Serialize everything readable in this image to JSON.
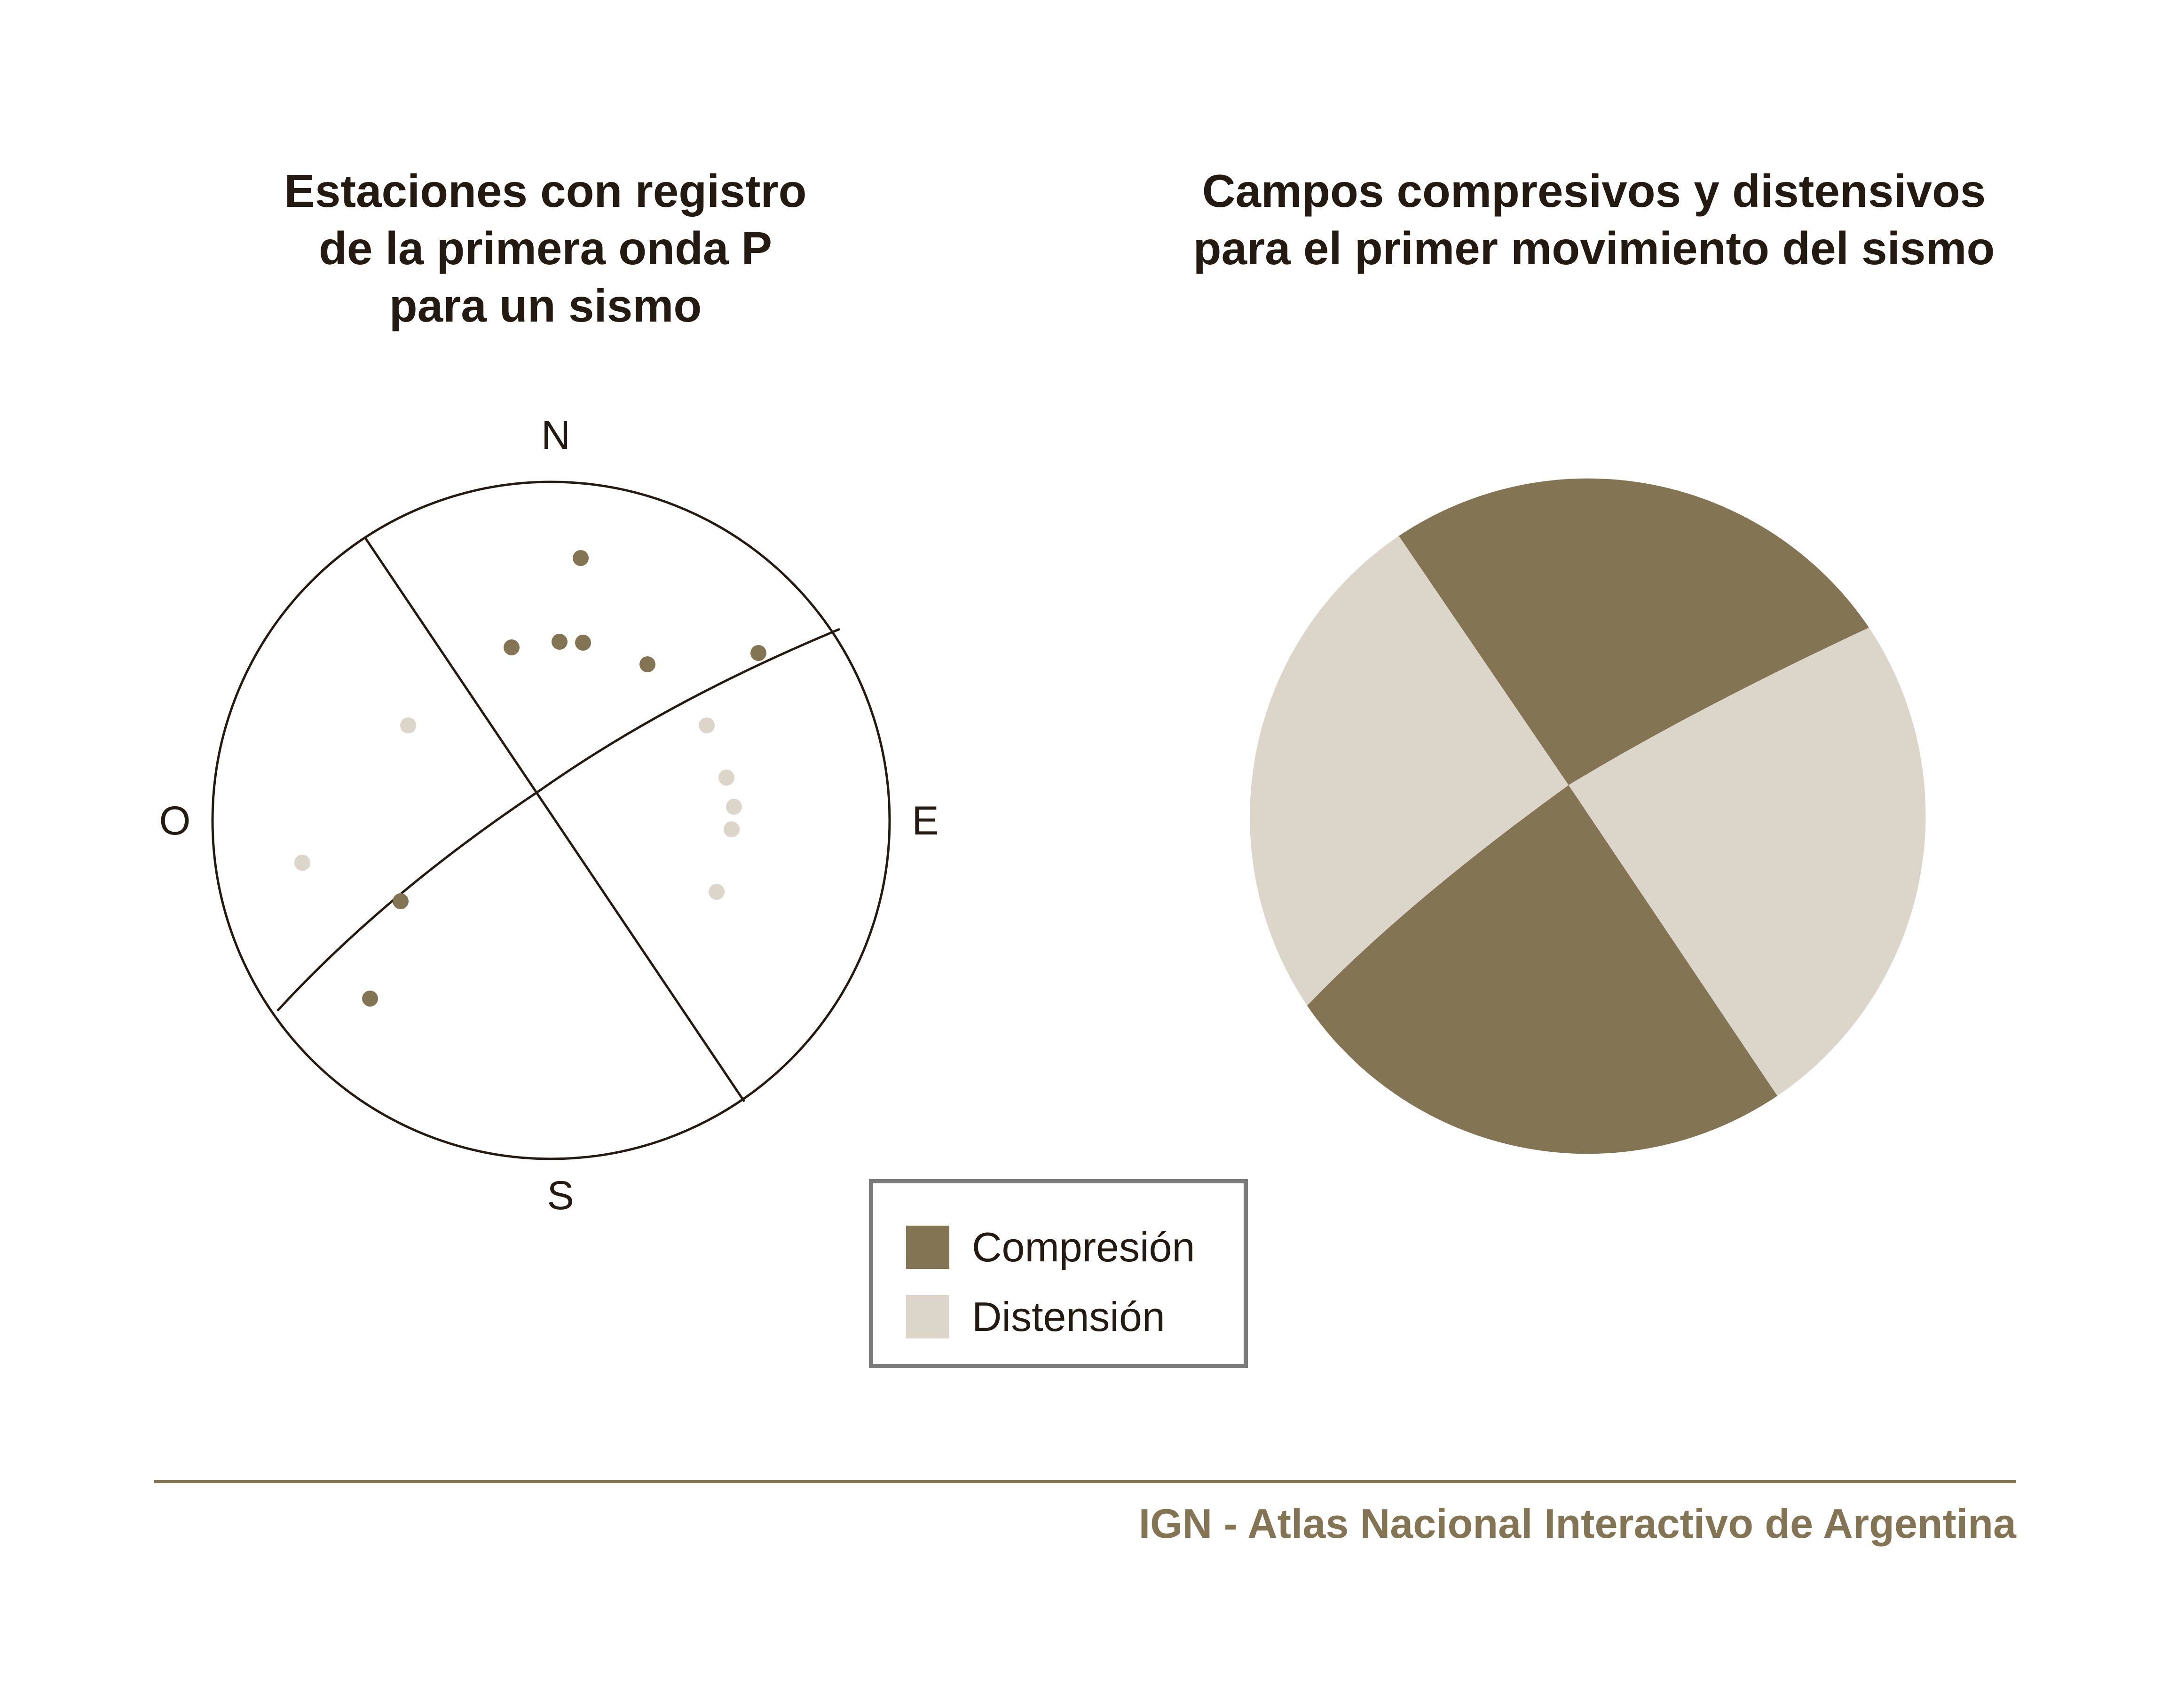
{
  "colors": {
    "compresion": "#837453",
    "distension": "#dbd5ca",
    "line": "#231a12",
    "legend_border": "#7a7a7a",
    "footer": "#837453"
  },
  "left_panel": {
    "title_lines": [
      "Estaciones con registro",
      "de la primera onda P",
      "para un sismo"
    ],
    "cardinals": {
      "north": "N",
      "south": "S",
      "east": "E",
      "west": "O"
    }
  },
  "right_panel": {
    "title_lines": [
      "Campos compresivos y distensivos",
      "para el primer movimiento del sismo"
    ],
    "quadrants": [
      "compresion",
      "distension",
      "compresion",
      "distension"
    ]
  },
  "legend": {
    "items": [
      {
        "key": "compresion",
        "label": "Compresión"
      },
      {
        "key": "distension",
        "label": "Distensión"
      }
    ]
  },
  "footer": {
    "text": "IGN - Atlas Nacional Interactivo de Argentina"
  }
}
